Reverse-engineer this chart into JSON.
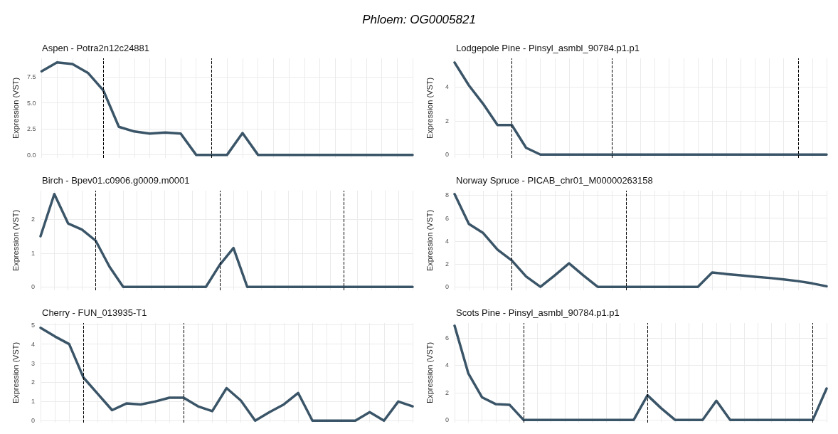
{
  "chart_data": [
    {
      "type": "line",
      "title": "Aspen - Potra2n12c24881",
      "ylabel": "Expression (VST)",
      "annotations": [
        "Phloem: OG0005821"
      ],
      "categories": [
        null,
        null,
        null,
        null,
        null,
        null,
        null,
        null,
        null,
        null,
        null,
        null,
        null,
        null,
        null,
        null,
        null,
        null,
        null,
        null,
        null,
        null,
        null,
        null,
        null
      ],
      "ylim": [
        -0.3,
        9.3
      ],
      "yticks": [
        {
          "value": 0,
          "label": "0.0"
        },
        {
          "value": 2.5,
          "label": "2.5"
        },
        {
          "value": 5,
          "label": "5.0"
        },
        {
          "value": 7.5,
          "label": "7.5"
        }
      ],
      "grid": true,
      "tick_labels": "y",
      "marker": "none",
      "color": "#3b5568",
      "values": [
        8.05,
        8.9,
        8.75,
        7.9,
        6.2,
        2.7,
        2.25,
        2.05,
        2.15,
        2.05,
        0,
        0,
        0,
        2.1,
        0,
        0,
        0,
        0,
        0,
        0,
        0,
        0,
        0,
        0,
        0
      ]
    },
    {
      "type": "line",
      "title": "Lodgepole Pine - Pinsyl_asmbl_90784.p1.p1",
      "ylabel": "Expression (VST)",
      "categories": [
        null,
        null,
        null,
        null,
        null,
        null,
        null,
        null,
        null,
        null,
        null,
        null,
        null,
        null,
        null,
        null,
        null,
        null,
        null,
        null,
        null,
        null,
        null,
        null,
        null,
        null,
        null
      ],
      "ylim": [
        -0.2,
        5.7
      ],
      "yticks": [
        0,
        2,
        4
      ],
      "grid": true,
      "tick_labels": "y",
      "marker": "none",
      "color": "#3b5568",
      "values": [
        5.45,
        4.1,
        3.0,
        1.75,
        1.75,
        0.4,
        0,
        0,
        0,
        0,
        0,
        0,
        0,
        0,
        0,
        0,
        0,
        0,
        0,
        0,
        0,
        0,
        0,
        0,
        0,
        0,
        0
      ]
    },
    {
      "type": "line",
      "title": "Birch - Bpev01.c0906.g0009.m0001",
      "ylabel": "Expression (VST)",
      "categories": [
        null,
        null,
        null,
        null,
        null,
        null,
        null,
        null,
        null,
        null,
        null,
        null,
        null,
        null,
        null,
        null,
        null,
        null,
        null,
        null,
        null,
        null,
        null,
        null,
        null,
        null,
        null,
        null
      ],
      "ylim": [
        -0.1,
        2.85
      ],
      "yticks": [
        0,
        1,
        2
      ],
      "grid": true,
      "tick_labels": "y",
      "marker": "none",
      "color": "#3b5568",
      "values": [
        1.5,
        2.75,
        1.88,
        1.7,
        1.37,
        0.6,
        0,
        0,
        0,
        0,
        0,
        0,
        0,
        0.65,
        1.15,
        0,
        0,
        0,
        0,
        0,
        0,
        0,
        0,
        0,
        0,
        0,
        0,
        0
      ]
    },
    {
      "type": "line",
      "title": "Norway Spruce - PICAB_chr01_M00000263158",
      "ylabel": "Expression (VST)",
      "categories": [
        null,
        null,
        null,
        null,
        null,
        null,
        null,
        null,
        null,
        null,
        null,
        null,
        null,
        null,
        null,
        null,
        null,
        null,
        null,
        null,
        null,
        null,
        null,
        null,
        null,
        null,
        null
      ],
      "ylim": [
        -0.3,
        8.4
      ],
      "yticks": [
        0,
        2,
        4,
        6,
        8
      ],
      "grid": true,
      "tick_labels": "y",
      "marker": "none",
      "color": "#3b5568",
      "values": [
        8.1,
        5.5,
        4.7,
        3.25,
        2.3,
        0.9,
        0,
        1.0,
        2.05,
        1.0,
        0,
        0,
        0,
        0,
        0,
        0,
        0,
        0,
        1.25,
        1.12,
        1.0,
        0.88,
        0.78,
        0.65,
        0.5,
        0.3,
        0.05
      ]
    },
    {
      "type": "line",
      "title": "Cherry - FUN_013935-T1",
      "ylabel": "Expression (VST)",
      "categories": [
        null,
        null,
        null,
        null,
        null,
        null,
        null,
        null,
        null,
        null,
        null,
        null,
        null,
        null,
        null,
        null,
        null,
        null,
        null,
        null,
        null,
        null,
        null,
        null,
        null,
        null,
        null
      ],
      "ylim": [
        -0.1,
        5.1
      ],
      "yticks": [
        0,
        1,
        2,
        3,
        4,
        5
      ],
      "grid": true,
      "tick_labels": "y",
      "marker": "none",
      "color": "#3b5568",
      "values": [
        4.85,
        4.4,
        4.0,
        2.25,
        1.4,
        0.55,
        0.9,
        0.85,
        1.0,
        1.2,
        1.2,
        0.75,
        0.5,
        1.7,
        1.05,
        0,
        0.45,
        0.85,
        1.45,
        0,
        0,
        0,
        0,
        0.45,
        0,
        1.0,
        0.75
      ]
    },
    {
      "type": "line",
      "title": "Scots Pine - Pinsyl_asmbl_90784.p1.p1",
      "ylabel": "Expression (VST)",
      "categories": [
        null,
        null,
        null,
        null,
        null,
        null,
        null,
        null,
        null,
        null,
        null,
        null,
        null,
        null,
        null,
        null,
        null,
        null,
        null,
        null,
        null,
        null,
        null,
        null,
        null,
        null,
        null,
        null
      ],
      "ylim": [
        -0.2,
        7.1
      ],
      "yticks": [
        0,
        2,
        4,
        6
      ],
      "grid": true,
      "tick_labels": "y",
      "marker": "none",
      "color": "#3b5568",
      "values": [
        6.9,
        3.4,
        1.65,
        1.15,
        1.1,
        0,
        0,
        0,
        0,
        0,
        0,
        0,
        0,
        0,
        1.8,
        0.85,
        0,
        0,
        0,
        1.4,
        0,
        0,
        0,
        0,
        0,
        0,
        0,
        2.3
      ]
    }
  ]
}
